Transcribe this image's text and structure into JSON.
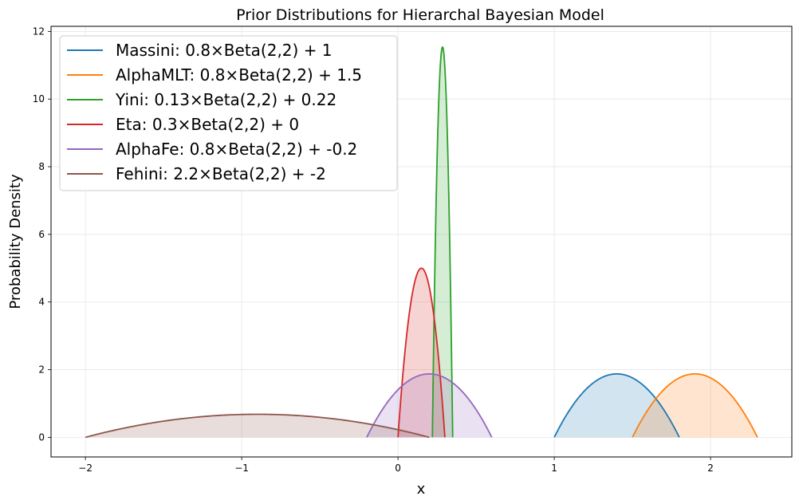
{
  "chart_data": {
    "type": "line",
    "title": "Prior Distributions for Hierarchal Bayesian Model",
    "xlabel": "x",
    "ylabel": "Probability Density",
    "xlim": [
      -2.22,
      2.52
    ],
    "ylim": [
      -0.58,
      12.15
    ],
    "xticks": [
      -2,
      -1,
      0,
      1,
      2
    ],
    "yticks": [
      0,
      2,
      4,
      6,
      8,
      10,
      12
    ],
    "grid": true,
    "legend_position": "top-left",
    "series": [
      {
        "name": "Massini: 0.8×Beta(2,2) + 1",
        "scale": 0.8,
        "shift": 1,
        "support": [
          1,
          1.8
        ],
        "peak_density": 1.875,
        "color": "#1f77b4"
      },
      {
        "name": "AlphaMLT: 0.8×Beta(2,2) + 1.5",
        "scale": 0.8,
        "shift": 1.5,
        "support": [
          1.5,
          2.3
        ],
        "peak_density": 1.875,
        "color": "#ff7f0e"
      },
      {
        "name": "Yini: 0.13×Beta(2,2) + 0.22",
        "scale": 0.13,
        "shift": 0.22,
        "support": [
          0.22,
          0.35
        ],
        "peak_density": 11.54,
        "color": "#2ca02c"
      },
      {
        "name": "Eta: 0.3×Beta(2,2) + 0",
        "scale": 0.3,
        "shift": 0,
        "support": [
          0,
          0.3
        ],
        "peak_density": 5.0,
        "color": "#d62728"
      },
      {
        "name": "AlphaFe: 0.8×Beta(2,2) + -0.2",
        "scale": 0.8,
        "shift": -0.2,
        "support": [
          -0.2,
          0.6
        ],
        "peak_density": 1.875,
        "color": "#9467bd"
      },
      {
        "name": "Fehini: 2.2×Beta(2,2) + -2",
        "scale": 2.2,
        "shift": -2,
        "support": [
          -2,
          0.2
        ],
        "peak_density": 0.68,
        "color": "#8c564b"
      }
    ]
  }
}
